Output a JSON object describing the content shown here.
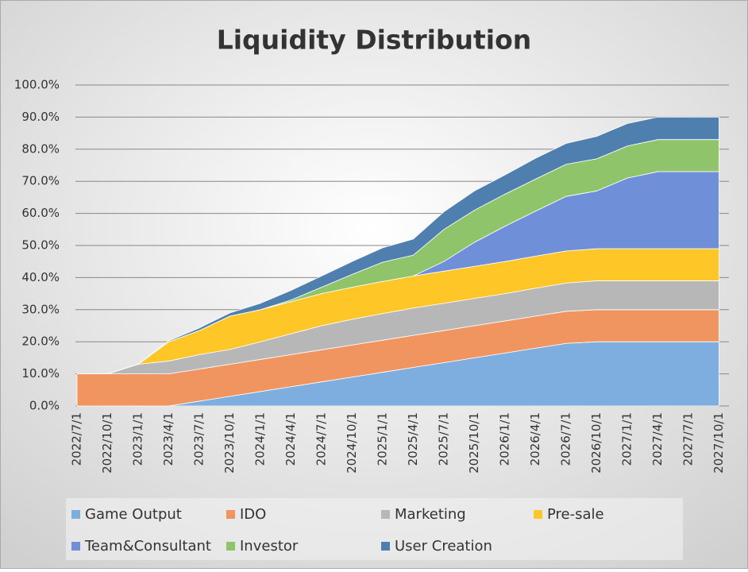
{
  "chart_data": {
    "type": "stacked_area",
    "title": "Liquidity Distribution",
    "categories": [
      "2022/7/1",
      "2022/10/1",
      "2023/1/1",
      "2023/4/1",
      "2023/7/1",
      "2023/10/1",
      "2024/1/1",
      "2024/4/1",
      "2024/7/1",
      "2024/10/1",
      "2025/1/1",
      "2025/4/1",
      "2025/7/1",
      "2025/10/1",
      "2026/1/1",
      "2026/4/1",
      "2026/7/1",
      "2026/10/1",
      "2027/1/1",
      "2027/4/1",
      "2027/7/1",
      "2027/10/1"
    ],
    "series": [
      {
        "name": "Game Output",
        "color": "#7eaee0",
        "values": [
          0,
          0,
          0,
          0,
          1.5,
          3,
          4.5,
          6,
          7.5,
          9,
          10.5,
          12,
          13.5,
          15,
          16.5,
          18,
          19.5,
          20,
          20,
          20,
          20,
          20
        ]
      },
      {
        "name": "IDO",
        "color": "#f0955f",
        "values": [
          10,
          10,
          10,
          10,
          10,
          10,
          10,
          10,
          10,
          10,
          10,
          10,
          10,
          10,
          10,
          10,
          10,
          10,
          10,
          10,
          10,
          10
        ]
      },
      {
        "name": "Marketing",
        "color": "#b7b7b7",
        "values": [
          0,
          0,
          3,
          4,
          4.5,
          4.6,
          5.5,
          6.5,
          7.5,
          8,
          8.3,
          8.5,
          8.5,
          8.5,
          8.5,
          8.7,
          8.8,
          9,
          9,
          9,
          9,
          9
        ]
      },
      {
        "name": "Pre-sale",
        "color": "#ffc627",
        "values": [
          0,
          0,
          0,
          6,
          7.5,
          10.4,
          10,
          10,
          10,
          10,
          10,
          10,
          10,
          10,
          10,
          10,
          10,
          10,
          10,
          10,
          10,
          10
        ]
      },
      {
        "name": "Team&Consultant",
        "color": "#6f8fd9",
        "values": [
          0,
          0,
          0,
          0,
          0,
          0,
          0,
          0,
          0,
          0,
          0,
          0,
          3,
          7.5,
          11,
          14,
          17,
          18,
          22,
          24,
          24,
          24
        ]
      },
      {
        "name": "Investor",
        "color": "#8fc46b",
        "values": [
          0,
          0,
          0,
          0,
          0,
          0,
          0,
          0.5,
          2,
          4,
          6,
          6.5,
          10,
          10,
          10,
          10,
          10,
          10,
          10,
          10,
          10,
          10
        ]
      },
      {
        "name": "User Creation",
        "color": "#4f7fae",
        "values": [
          0,
          0,
          0,
          0.3,
          0.8,
          1,
          2,
          3,
          3.5,
          4,
          4.5,
          5,
          5.5,
          6,
          6,
          6.5,
          6.5,
          7,
          7,
          7,
          7,
          7
        ]
      }
    ],
    "ylim": [
      0,
      100
    ],
    "yticks": [
      {
        "value": 0,
        "label": "0.0%"
      },
      {
        "value": 10,
        "label": "10.0%"
      },
      {
        "value": 20,
        "label": "20.0%"
      },
      {
        "value": 30,
        "label": "30.0%"
      },
      {
        "value": 40,
        "label": "40.0%"
      },
      {
        "value": 50,
        "label": "50.0%"
      },
      {
        "value": 60,
        "label": "60.0%"
      },
      {
        "value": 70,
        "label": "70.0%"
      },
      {
        "value": 80,
        "label": "80.0%"
      },
      {
        "value": 90,
        "label": "90.0%"
      },
      {
        "value": 100,
        "label": "100.0%"
      }
    ],
    "grid": true,
    "legend": "bottom"
  }
}
